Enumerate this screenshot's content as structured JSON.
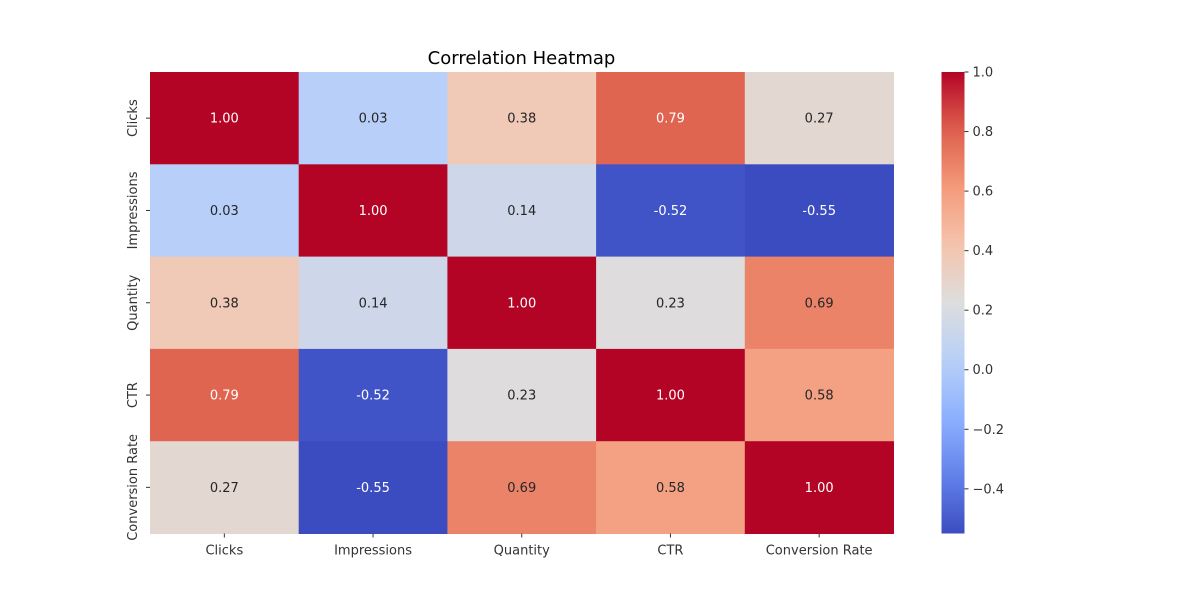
{
  "chart_data": {
    "type": "heatmap",
    "title": "Correlation Heatmap",
    "xlabel": "",
    "ylabel": "",
    "x_categories": [
      "Clicks",
      "Impressions",
      "Quantity",
      "CTR",
      "Conversion Rate"
    ],
    "y_categories": [
      "Clicks",
      "Impressions",
      "Quantity",
      "CTR",
      "Conversion Rate"
    ],
    "values": [
      [
        1.0,
        0.03,
        0.38,
        0.79,
        0.27
      ],
      [
        0.03,
        1.0,
        0.14,
        -0.52,
        -0.55
      ],
      [
        0.38,
        0.14,
        1.0,
        0.23,
        0.69
      ],
      [
        0.79,
        -0.52,
        0.23,
        1.0,
        0.58
      ],
      [
        0.27,
        -0.55,
        0.69,
        0.58,
        1.0
      ]
    ],
    "value_labels": [
      [
        "1.00",
        "0.03",
        "0.38",
        "0.79",
        "0.27"
      ],
      [
        "0.03",
        "1.00",
        "0.14",
        "-0.52",
        "-0.55"
      ],
      [
        "0.38",
        "0.14",
        "1.00",
        "0.23",
        "0.69"
      ],
      [
        "0.79",
        "-0.52",
        "0.23",
        "1.00",
        "0.58"
      ],
      [
        "0.27",
        "-0.55",
        "0.69",
        "0.58",
        "1.00"
      ]
    ],
    "colormap": "coolwarm",
    "color_range": [
      -0.55,
      1.0
    ],
    "colorbar": {
      "ticks": [
        1.0,
        0.8,
        0.6,
        0.4,
        0.2,
        0.0,
        -0.2,
        -0.4
      ],
      "tick_labels": [
        "1.0",
        "0.8",
        "0.6",
        "0.4",
        "0.2",
        "0.0",
        "−0.2",
        "−0.4"
      ],
      "placement": "right"
    },
    "grid": false
  }
}
